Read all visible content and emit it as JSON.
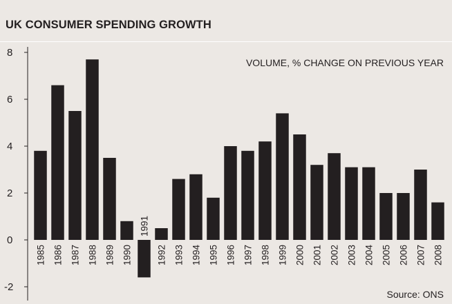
{
  "header": {
    "title": "UK CONSUMER SPENDING GROWTH"
  },
  "chart_data": {
    "type": "bar",
    "title": "UK CONSUMER SPENDING GROWTH",
    "annotation": "VOLUME, % CHANGE ON PREVIOUS YEAR",
    "source": "Source: ONS",
    "categories": [
      "1985",
      "1986",
      "1987",
      "1988",
      "1989",
      "1990",
      "1991",
      "1992",
      "1993",
      "1994",
      "1995",
      "1996",
      "1997",
      "1998",
      "1999",
      "2000",
      "2001",
      "2002",
      "2003",
      "2004",
      "2005",
      "2006",
      "2007",
      "2008"
    ],
    "values": [
      3.8,
      6.6,
      5.5,
      7.7,
      3.5,
      0.8,
      -1.6,
      0.5,
      2.6,
      2.8,
      1.8,
      4.0,
      3.8,
      4.2,
      5.4,
      4.5,
      3.2,
      3.7,
      3.1,
      3.1,
      2.0,
      2.0,
      3.0,
      1.6
    ],
    "yticks": [
      8,
      6,
      4,
      2,
      0,
      -2
    ],
    "ylim": [
      -2.5,
      8
    ],
    "xlabel": "",
    "ylabel": "",
    "grid": false,
    "colors": {
      "bar": "#231f20",
      "background": "#ece8e4",
      "rule": "#ffffff"
    }
  }
}
